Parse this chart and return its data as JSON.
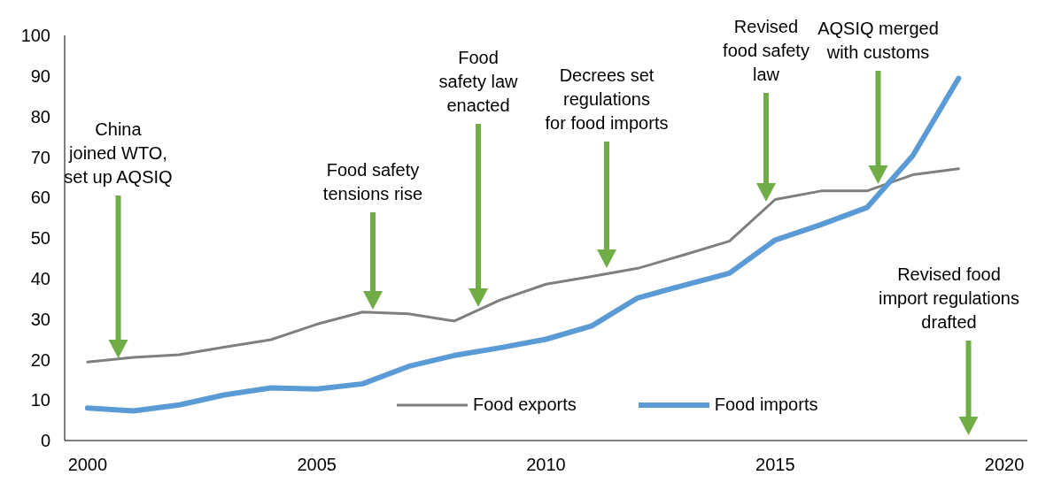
{
  "chart_data": {
    "type": "line",
    "x": [
      2000,
      2001,
      2002,
      2003,
      2004,
      2005,
      2006,
      2007,
      2008,
      2009,
      2010,
      2011,
      2012,
      2013,
      2014,
      2015,
      2016,
      2017,
      2018,
      2019
    ],
    "series": [
      {
        "name": "Food exports",
        "color": "#7f7f7f",
        "values": [
          19.4,
          20.5,
          21.2,
          23.1,
          24.9,
          28.7,
          31.7,
          31.3,
          29.5,
          34.7,
          38.6,
          40.5,
          42.5,
          45.8,
          49.2,
          59.5,
          61.6,
          61.6,
          65.6,
          67.1
        ]
      },
      {
        "name": "Food imports",
        "color": "#5b9bd5",
        "values": [
          8.0,
          7.3,
          8.8,
          11.3,
          13.0,
          12.7,
          14.0,
          18.3,
          21.0,
          22.9,
          25.0,
          28.3,
          35.2,
          38.3,
          41.3,
          49.5,
          53.3,
          57.5,
          70.3,
          89.4
        ]
      }
    ],
    "xlim": [
      1999.5,
      2020.5
    ],
    "xticks": [
      2000,
      2005,
      2010,
      2015,
      2020
    ],
    "ylim": [
      0,
      100
    ],
    "yticks": [
      0,
      10,
      20,
      30,
      40,
      50,
      60,
      70,
      80,
      90,
      100
    ],
    "grid": false,
    "legend": "bottom",
    "marker": "none",
    "line_style": "solid",
    "annotations": [
      "China joined WTO, set up AQSIQ",
      "Food safety tensions rise",
      "Food safety law enacted",
      "Decrees set regulations for food imports",
      "Revised food safety law",
      "AQSIQ merged with customs",
      "Revised food import regulations drafted"
    ]
  }
}
